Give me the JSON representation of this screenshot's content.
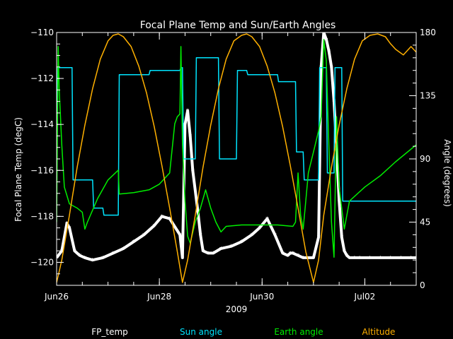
{
  "chart_data": {
    "type": "line",
    "title": "Focal Plane Temp and Sun/Earth Angles",
    "xlabel": "2009",
    "ylabel_left": "Focal Plane Temp (degC)",
    "ylabel_right": "Angle (degrees)",
    "x_range_days": [
      0.0,
      7.0
    ],
    "ylim_left": [
      -121,
      -110
    ],
    "ylim_right": [
      0,
      180
    ],
    "x_ticks": [
      {
        "x": 0.0,
        "label": "Jun26"
      },
      {
        "x": 2.0,
        "label": "Jun28"
      },
      {
        "x": 4.0,
        "label": "Jun30"
      },
      {
        "x": 6.0,
        "label": "Jul02"
      }
    ],
    "y_ticks_left": [
      -110,
      -112,
      -114,
      -116,
      -118,
      -120
    ],
    "y_tick_labels_left": [
      "−110",
      "−112",
      "−114",
      "−116",
      "−118",
      "−120"
    ],
    "y_ticks_right": [
      0,
      45,
      90,
      135,
      180
    ],
    "series": [
      {
        "name": "FP_temp",
        "axis": "left",
        "color": "#ffffff",
        "marker": "*",
        "x": [
          0.0,
          0.1,
          0.2,
          0.25,
          0.35,
          0.45,
          0.55,
          0.7,
          0.9,
          1.1,
          1.3,
          1.5,
          1.7,
          1.9,
          2.05,
          2.2,
          2.4,
          2.45,
          2.5,
          2.55,
          2.6,
          2.65,
          2.75,
          2.8,
          2.85,
          2.95,
          3.05,
          3.2,
          3.4,
          3.6,
          3.8,
          3.95,
          4.1,
          4.25,
          4.4,
          4.5,
          4.55,
          4.6,
          4.7,
          4.8,
          5.0,
          5.1,
          5.15,
          5.2,
          5.25,
          5.3,
          5.35,
          5.4,
          5.45,
          5.5,
          5.55,
          5.6,
          5.65,
          5.7,
          5.8,
          5.9,
          6.1,
          6.3,
          6.5,
          6.7,
          6.9,
          7.0
        ],
        "values": [
          -119.8,
          -119.5,
          -118.3,
          -118.5,
          -119.5,
          -119.7,
          -119.8,
          -119.9,
          -119.8,
          -119.6,
          -119.4,
          -119.1,
          -118.8,
          -118.4,
          -118.0,
          -118.1,
          -118.8,
          -119.8,
          -114.0,
          -113.4,
          -114.5,
          -116.0,
          -117.8,
          -118.8,
          -119.5,
          -119.6,
          -119.6,
          -119.4,
          -119.3,
          -119.1,
          -118.8,
          -118.5,
          -118.1,
          -118.8,
          -119.6,
          -119.7,
          -119.6,
          -119.6,
          -119.7,
          -119.8,
          -119.8,
          -118.9,
          -111.5,
          -110.0,
          -110.3,
          -110.8,
          -111.5,
          -113.0,
          -115.0,
          -117.3,
          -118.9,
          -119.5,
          -119.7,
          -119.8,
          -119.8,
          -119.8,
          -119.8,
          -119.8,
          -119.8,
          -119.8,
          -119.8,
          -119.8
        ]
      },
      {
        "name": "Sun angle",
        "axis": "right",
        "color": "#00e5ff",
        "x": [
          0.0,
          0.02,
          0.1,
          0.3,
          0.32,
          0.7,
          0.72,
          0.9,
          0.92,
          1.2,
          1.22,
          1.8,
          1.82,
          2.4,
          2.42,
          2.45,
          2.47,
          2.7,
          2.72,
          3.15,
          3.17,
          3.5,
          3.52,
          3.7,
          3.72,
          4.3,
          4.32,
          4.65,
          4.67,
          4.8,
          4.82,
          5.0,
          5.02,
          5.1,
          5.12,
          5.25,
          5.27,
          5.4,
          5.42,
          5.55,
          5.57,
          5.8,
          5.82,
          7.0
        ],
        "values": [
          100,
          155,
          155,
          155,
          75,
          75,
          55,
          55,
          50,
          50,
          150,
          150,
          153,
          153,
          155,
          155,
          90,
          90,
          162,
          162,
          90,
          90,
          153,
          153,
          150,
          150,
          145,
          145,
          95,
          95,
          75,
          75,
          75,
          75,
          155,
          155,
          80,
          80,
          155,
          155,
          60,
          60,
          60,
          60
        ]
      },
      {
        "name": "Earth angle",
        "axis": "right",
        "color": "#00ee00",
        "x": [
          0.0,
          0.03,
          0.05,
          0.1,
          0.15,
          0.25,
          0.4,
          0.5,
          0.55,
          0.6,
          0.8,
          1.0,
          1.2,
          1.22,
          1.5,
          1.8,
          2.0,
          2.2,
          2.3,
          2.35,
          2.4,
          2.42,
          2.45,
          2.5,
          2.55,
          2.6,
          2.7,
          2.8,
          2.9,
          3.0,
          3.1,
          3.2,
          3.3,
          3.6,
          3.9,
          4.3,
          4.6,
          4.65,
          4.7,
          4.75,
          4.8,
          4.85,
          4.9,
          5.0,
          5.1,
          5.15,
          5.2,
          5.25,
          5.3,
          5.35,
          5.4,
          5.45,
          5.5,
          5.55,
          5.6,
          5.7,
          6.0,
          6.3,
          6.6,
          7.0
        ],
        "values": [
          45,
          170,
          140,
          100,
          70,
          58,
          55,
          52,
          40,
          45,
          62,
          75,
          82,
          65,
          66,
          68,
          72,
          80,
          115,
          120,
          122,
          170,
          100,
          60,
          35,
          30,
          45,
          55,
          68,
          55,
          45,
          38,
          42,
          43,
          43,
          43,
          42,
          45,
          80,
          50,
          40,
          60,
          80,
          95,
          110,
          120,
          175,
          160,
          100,
          45,
          20,
          120,
          70,
          55,
          40,
          60,
          70,
          78,
          88,
          100
        ]
      },
      {
        "name": "Altitude",
        "axis": "right",
        "color": "#ffb000",
        "x": [
          0.0,
          0.1,
          0.25,
          0.4,
          0.55,
          0.7,
          0.85,
          1.0,
          1.1,
          1.2,
          1.3,
          1.45,
          1.6,
          1.75,
          1.9,
          2.05,
          2.2,
          2.35,
          2.45,
          2.55,
          2.7,
          2.85,
          3.0,
          3.15,
          3.3,
          3.45,
          3.6,
          3.7,
          3.8,
          3.95,
          4.1,
          4.25,
          4.4,
          4.55,
          4.7,
          4.85,
          5.0,
          5.1,
          5.2,
          5.35,
          5.5,
          5.65,
          5.8,
          5.95,
          6.1,
          6.25,
          6.4,
          6.5,
          6.6,
          6.75,
          6.9,
          7.0
        ],
        "values": [
          2,
          18,
          50,
          84,
          114,
          140,
          161,
          174,
          178,
          179,
          177,
          170,
          156,
          137,
          113,
          85,
          55,
          24,
          2,
          18,
          50,
          84,
          114,
          140,
          161,
          174,
          178,
          179,
          177,
          170,
          156,
          137,
          113,
          85,
          55,
          24,
          2,
          18,
          50,
          84,
          114,
          140,
          161,
          174,
          178,
          179,
          177,
          172,
          168,
          164,
          170,
          166
        ]
      }
    ]
  }
}
